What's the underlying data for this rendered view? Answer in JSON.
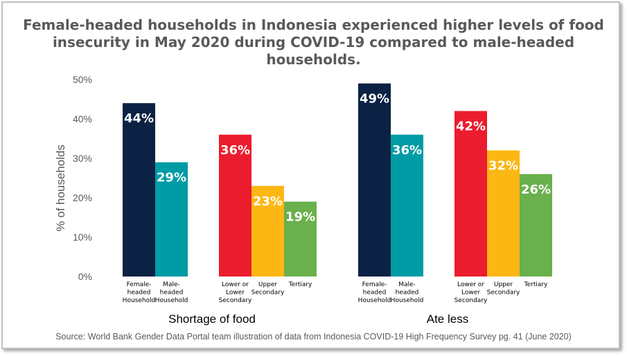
{
  "chart_data": {
    "type": "bar",
    "title": "Female-headed households in Indonesia experienced higher levels of food insecurity in May 2020 during COVID-19 compared to male-headed households.",
    "ylabel": "% of households",
    "ylim": [
      0,
      50
    ],
    "yticks": [
      "0%",
      "10%",
      "20%",
      "30%",
      "40%",
      "50%"
    ],
    "grid": false,
    "legend": "none",
    "groups": [
      {
        "name": "Shortage of food",
        "bars": [
          {
            "category": [
              "Female-",
              "headed",
              "Household"
            ],
            "value": 44,
            "label": "44%",
            "color": "#0b2244"
          },
          {
            "category": [
              "Male-",
              "headed",
              "Household"
            ],
            "value": 29,
            "label": "29%",
            "color": "#009ca6"
          },
          {
            "category": [
              "Lower or",
              "Lower",
              "Secondary"
            ],
            "value": 36,
            "label": "36%",
            "color": "#eb1c2d"
          },
          {
            "category": [
              "Upper",
              "Secondary"
            ],
            "value": 23,
            "label": "23%",
            "color": "#fdb714"
          },
          {
            "category": [
              "Tertiary"
            ],
            "value": 19,
            "label": "19%",
            "color": "#6ab04c"
          }
        ]
      },
      {
        "name": "Ate less",
        "bars": [
          {
            "category": [
              "Female-",
              "headed",
              "Household"
            ],
            "value": 49,
            "label": "49%",
            "color": "#0b2244"
          },
          {
            "category": [
              "Male-",
              "headed",
              "Household"
            ],
            "value": 36,
            "label": "36%",
            "color": "#009ca6"
          },
          {
            "category": [
              "Lower or",
              "Lower",
              "Secondary"
            ],
            "value": 42,
            "label": "42%",
            "color": "#eb1c2d"
          },
          {
            "category": [
              "Upper",
              "Secondary"
            ],
            "value": 32,
            "label": "32%",
            "color": "#fdb714"
          },
          {
            "category": [
              "Tertiary"
            ],
            "value": 26,
            "label": "26%",
            "color": "#6ab04c"
          }
        ]
      }
    ],
    "source": "Source:  World Bank Gender  Data  Portal team illustration  of data from  Indonesia  COVID-19  High Frequency  Survey pg. 41 (June 2020)"
  }
}
